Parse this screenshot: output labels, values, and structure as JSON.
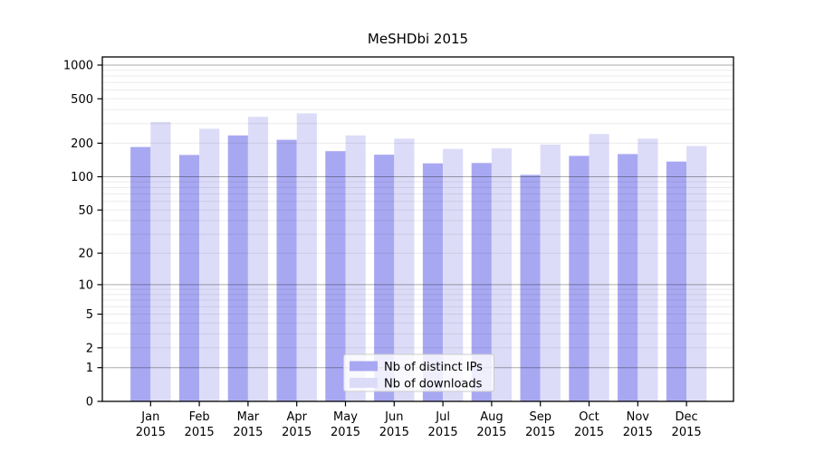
{
  "chart_data": {
    "type": "bar",
    "title": "MeSHDbi 2015",
    "categories": [
      "Jan",
      "Feb",
      "Mar",
      "Apr",
      "May",
      "Jun",
      "Jul",
      "Aug",
      "Sep",
      "Oct",
      "Nov",
      "Dec"
    ],
    "category_sublabel": "2015",
    "series": [
      {
        "name": "Nb of distinct IPs",
        "color": "#a8a8f2",
        "values": [
          185,
          157,
          235,
          215,
          170,
          158,
          132,
          133,
          104,
          154,
          160,
          137
        ]
      },
      {
        "name": "Nb of downloads",
        "color": "#dcdcf8",
        "values": [
          310,
          270,
          345,
          370,
          235,
          220,
          178,
          180,
          195,
          242,
          220,
          189
        ]
      }
    ],
    "yscale": "log1p",
    "yticks": [
      0,
      1,
      2,
      5,
      10,
      20,
      50,
      100,
      200,
      500,
      1000
    ],
    "ylim": [
      0,
      1180
    ],
    "xlabel": "",
    "ylabel": "",
    "grid": "horizontal, minor log lines light gray, decade lines (1,10,100,1000) darker gray, drawn over bars",
    "legend_position": "inside lower center, semi-transparent white box"
  },
  "colors": {
    "background": "#ffffff",
    "frame": "#000000",
    "grid_minor": "rgba(0,0,0,0.08)",
    "grid_major": "rgba(0,0,0,0.33)",
    "legend_border": "#cccccc",
    "legend_fill": "rgba(255,255,255,0.8)"
  }
}
